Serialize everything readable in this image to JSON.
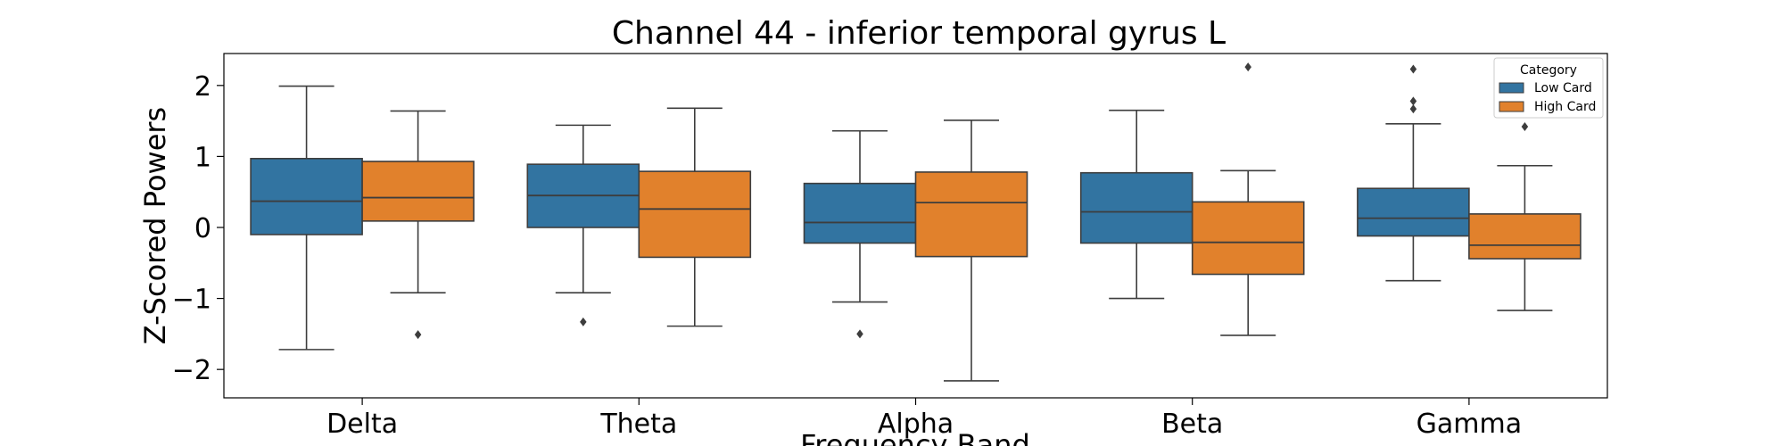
{
  "chart_data": {
    "type": "box",
    "title": "Channel 44 - inferior temporal gyrus L",
    "xlabel": "Frequency Band",
    "ylabel": "Z-Scored Powers",
    "ylim": [
      -2.4,
      2.45
    ],
    "yticks": [
      -2,
      -1,
      0,
      1,
      2
    ],
    "ytick_labels": [
      "−2",
      "−1",
      "0",
      "1",
      "2"
    ],
    "categories": [
      "Delta",
      "Theta",
      "Alpha",
      "Beta",
      "Gamma"
    ],
    "legend": {
      "title": "Category",
      "placement": "top-right"
    },
    "grid": false,
    "series": [
      {
        "name": "Low Card",
        "color": "#3274a1",
        "boxes": [
          {
            "whisker_low": -1.72,
            "q1": -0.1,
            "median": 0.37,
            "q3": 0.97,
            "whisker_high": 1.99,
            "outliers": []
          },
          {
            "whisker_low": -0.92,
            "q1": 0.0,
            "median": 0.45,
            "q3": 0.89,
            "whisker_high": 1.44,
            "outliers": [
              -1.33
            ]
          },
          {
            "whisker_low": -1.05,
            "q1": -0.22,
            "median": 0.07,
            "q3": 0.62,
            "whisker_high": 1.36,
            "outliers": [
              -1.5
            ]
          },
          {
            "whisker_low": -1.0,
            "q1": -0.22,
            "median": 0.22,
            "q3": 0.77,
            "whisker_high": 1.65,
            "outliers": []
          },
          {
            "whisker_low": -0.75,
            "q1": -0.12,
            "median": 0.13,
            "q3": 0.55,
            "whisker_high": 1.46,
            "outliers": [
              1.67,
              1.78,
              2.23
            ]
          }
        ]
      },
      {
        "name": "High Card",
        "color": "#e1812c",
        "boxes": [
          {
            "whisker_low": -0.92,
            "q1": 0.09,
            "median": 0.42,
            "q3": 0.93,
            "whisker_high": 1.64,
            "outliers": [
              -1.51
            ]
          },
          {
            "whisker_low": -1.39,
            "q1": -0.42,
            "median": 0.26,
            "q3": 0.79,
            "whisker_high": 1.68,
            "outliers": []
          },
          {
            "whisker_low": -2.16,
            "q1": -0.41,
            "median": 0.35,
            "q3": 0.78,
            "whisker_high": 1.51,
            "outliers": []
          },
          {
            "whisker_low": -1.52,
            "q1": -0.66,
            "median": -0.21,
            "q3": 0.36,
            "whisker_high": 0.8,
            "outliers": [
              2.26
            ]
          },
          {
            "whisker_low": -1.17,
            "q1": -0.44,
            "median": -0.25,
            "q3": 0.19,
            "whisker_high": 0.87,
            "outliers": [
              1.42
            ]
          }
        ]
      }
    ]
  }
}
